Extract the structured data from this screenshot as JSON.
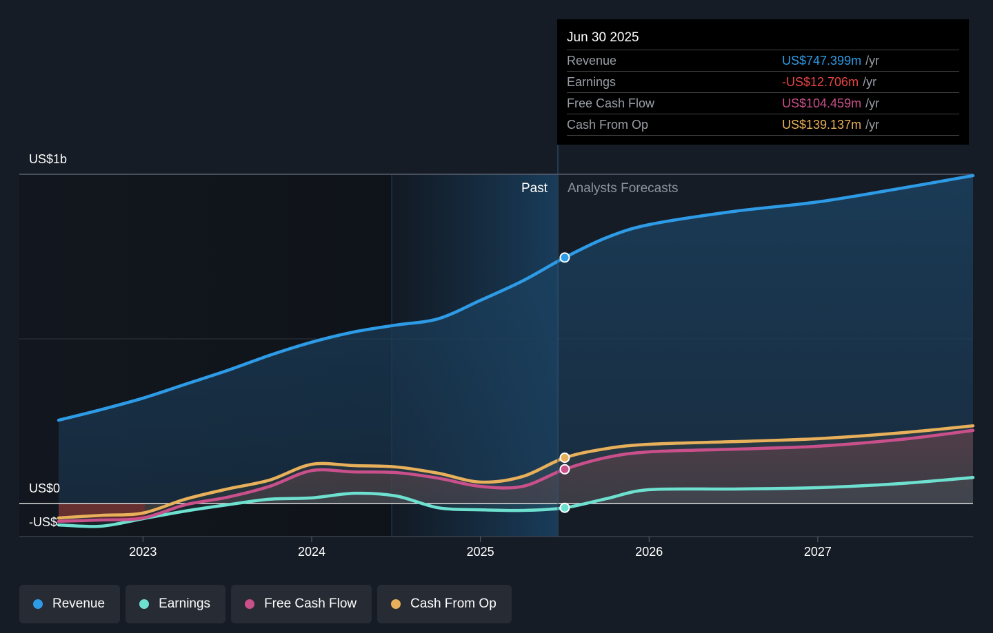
{
  "tooltip": {
    "date": "Jun 30 2025",
    "rows": [
      {
        "label": "Revenue",
        "value": "US$747.399m",
        "unit": "/yr",
        "color": "#2e9be6"
      },
      {
        "label": "Earnings",
        "value": "-US$12.706m",
        "unit": "/yr",
        "color": "#e84545"
      },
      {
        "label": "Free Cash Flow",
        "value": "US$104.459m",
        "unit": "/yr",
        "color": "#c9508a"
      },
      {
        "label": "Cash From Op",
        "value": "US$139.137m",
        "unit": "/yr",
        "color": "#e8b05a"
      }
    ]
  },
  "regions": {
    "past": "Past",
    "forecast": "Analysts Forecasts"
  },
  "legend": [
    {
      "label": "Revenue",
      "color": "#2e9be6"
    },
    {
      "label": "Earnings",
      "color": "#6de0d0"
    },
    {
      "label": "Free Cash Flow",
      "color": "#c9508a"
    },
    {
      "label": "Cash From Op",
      "color": "#e8b05a"
    }
  ],
  "chart_data": {
    "type": "line",
    "title": "",
    "xlabel": "",
    "ylabel": "",
    "units": "US$ millions per year",
    "y_tick_labels": [
      "US$1b",
      "US$0",
      "-US$..."
    ],
    "ylim": [
      -100,
      1000
    ],
    "xlim": [
      2022.5,
      2027.92
    ],
    "x_tick_labels": [
      "2023",
      "2024",
      "2025",
      "2026",
      "2027"
    ],
    "x_ticks": [
      2023,
      2024,
      2025,
      2026,
      2027
    ],
    "past_region": [
      2024.5,
      2025.5
    ],
    "forecast_start": 2025.5,
    "highlight_x": 2025.5,
    "grid": true,
    "legend_position": "bottom-left",
    "x": [
      2022.5,
      2022.75,
      2023.0,
      2023.25,
      2023.5,
      2023.75,
      2024.0,
      2024.25,
      2024.5,
      2024.75,
      2025.0,
      2025.25,
      2025.5,
      2025.75,
      2026.0,
      2026.5,
      2027.0,
      2027.5,
      2027.92
    ],
    "series": [
      {
        "name": "Revenue",
        "color": "#2e9be6",
        "values": [
          253,
          285,
          320,
          362,
          404,
          450,
          490,
          521,
          542,
          561,
          617,
          676,
          747,
          808,
          847,
          887,
          916,
          958,
          996
        ]
      },
      {
        "name": "Earnings",
        "color": "#6de0d0",
        "values": [
          -65,
          -69,
          -46,
          -23,
          -4,
          13,
          17,
          31,
          23,
          -13,
          -19,
          -21,
          -13,
          15,
          42,
          44,
          48,
          61,
          79
        ]
      },
      {
        "name": "Free Cash Flow",
        "color": "#c9508a",
        "values": [
          -54,
          -50,
          -44,
          -4,
          19,
          52,
          100,
          96,
          94,
          77,
          52,
          52,
          104,
          140,
          157,
          165,
          174,
          195,
          222
        ]
      },
      {
        "name": "Cash From Op",
        "color": "#e8b05a",
        "values": [
          -44,
          -36,
          -29,
          13,
          44,
          71,
          119,
          115,
          111,
          92,
          65,
          82,
          139,
          167,
          180,
          188,
          197,
          215,
          236
        ]
      }
    ]
  }
}
